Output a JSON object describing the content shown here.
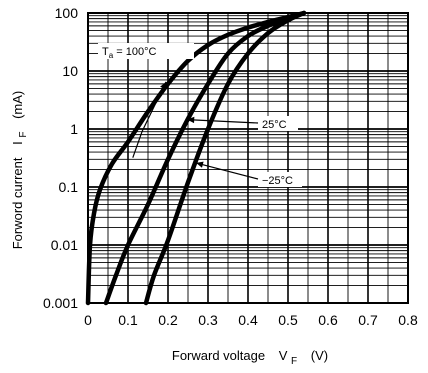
{
  "chart_data": {
    "type": "line",
    "y_scale": "log",
    "xlim": [
      0,
      0.8
    ],
    "ylim": [
      0.001,
      100
    ],
    "grid": true,
    "x_tick_labels": [
      "0",
      "0.1",
      "0.2",
      "0.3",
      "0.4",
      "0.5",
      "0.6",
      "0.7",
      "0.8"
    ],
    "y_tick_labels": [
      "100",
      "10",
      "1",
      "0.1",
      "0.01",
      "0.001"
    ],
    "xlabel": {
      "main": "Forward voltage",
      "symbol": "V",
      "subscript": "F",
      "unit": "(V)"
    },
    "ylabel": {
      "main": "Forword current",
      "symbol": "I",
      "subscript": "F",
      "unit": "(mA)"
    },
    "series": [
      {
        "label_symbol": "T",
        "label_subscript": "a",
        "label_value": " = 100°C",
        "x": [
          0.0,
          0.005,
          0.015,
          0.03,
          0.06,
          0.1,
          0.15,
          0.2,
          0.25,
          0.3,
          0.35,
          0.4,
          0.45,
          0.5,
          0.54
        ],
        "y": [
          0.001,
          0.01,
          0.035,
          0.09,
          0.25,
          0.6,
          2.0,
          6.0,
          15,
          28,
          42,
          56,
          70,
          85,
          100
        ]
      },
      {
        "label_value": "25°C",
        "x": [
          0.045,
          0.07,
          0.1,
          0.15,
          0.2,
          0.25,
          0.3,
          0.35,
          0.4,
          0.45,
          0.5,
          0.54
        ],
        "y": [
          0.001,
          0.003,
          0.01,
          0.05,
          0.3,
          1.5,
          6.0,
          20,
          40,
          60,
          80,
          100
        ]
      },
      {
        "label_value": "−25°C",
        "x": [
          0.145,
          0.165,
          0.2,
          0.25,
          0.3,
          0.35,
          0.4,
          0.45,
          0.5,
          0.54
        ],
        "y": [
          0.001,
          0.003,
          0.012,
          0.12,
          1.0,
          6.0,
          20,
          45,
          75,
          100
        ]
      }
    ]
  }
}
